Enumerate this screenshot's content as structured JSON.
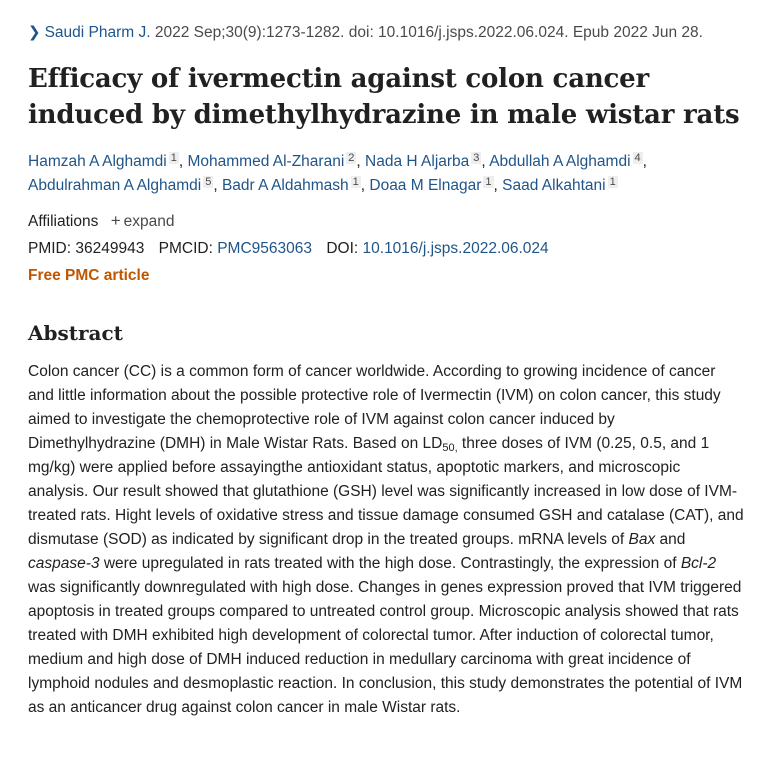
{
  "citation": {
    "journal": "Saudi Pharm J.",
    "details": "2022 Sep;30(9):1273-1282. doi: 10.1016/j.jsps.2022.06.024. Epub 2022 Jun 28."
  },
  "article": {
    "title": "Efficacy of ivermectin against colon cancer induced by dimethylhydrazine in male wistar rats"
  },
  "authors": [
    {
      "name": "Hamzah A Alghamdi",
      "aff": "1"
    },
    {
      "name": "Mohammed Al-Zharani",
      "aff": "2"
    },
    {
      "name": "Nada H Aljarba",
      "aff": "3"
    },
    {
      "name": "Abdullah A Alghamdi",
      "aff": "4"
    },
    {
      "name": "Abdulrahman A Alghamdi",
      "aff": "5"
    },
    {
      "name": "Badr A Aldahmash",
      "aff": "1"
    },
    {
      "name": "Doaa M Elnagar",
      "aff": "1"
    },
    {
      "name": "Saad Alkahtani",
      "aff": "1"
    }
  ],
  "affiliations": {
    "label": "Affiliations",
    "expand_label": "expand"
  },
  "identifiers": {
    "pmid_label": "PMID:",
    "pmid": "36249943",
    "pmcid_label": "PMCID:",
    "pmcid": "PMC9563063",
    "doi_label": "DOI:",
    "doi": "10.1016/j.jsps.2022.06.024"
  },
  "free_pmc_label": "Free PMC article",
  "abstract": {
    "heading": "Abstract",
    "p1": "Colon cancer (CC) is a common form of cancer worldwide. According to growing incidence of cancer and little information about the possible protective role of Ivermectin (IVM) on colon cancer, this study aimed to investigate the chemoprotective role of IVM against colon cancer induced by Dimethylhydrazine (DMH) in Male Wistar Rats. Based on LD",
    "ld_sub": "50,",
    "p2": " three doses of IVM (0.25, 0.5, and 1 mg/kg) were applied before assayingthe antioxidant status, apoptotic markers, and microscopic analysis. Our result showed that glutathione (GSH) level was significantly increased in low dose of IVM-treated rats. Hight levels of oxidative stress and tissue damage consumed GSH and catalase (CAT), and dismutase (SOD) as indicated by significant drop in the treated groups. mRNA levels of ",
    "gene1": "Bax",
    "and": " and ",
    "gene2": "caspase-3",
    "p3": " were upregulated in rats treated with the high dose. Contrastingly, the expression of ",
    "gene3": "Bcl-2",
    "p4": " was significantly downregulated with high dose. Changes in genes expression proved that IVM triggered apoptosis in treated groups compared to untreated control group. Microscopic analysis showed that rats treated with DMH exhibited high development of colorectal tumor. After induction of colorectal tumor, medium and high dose of DMH induced reduction in medullary carcinoma with great incidence of lymphoid nodules and desmoplastic reaction. In conclusion, this study demonstrates the potential of IVM as an anticancer drug against colon cancer in male Wistar rats."
  },
  "colors": {
    "link": "#20558a",
    "free_pmc": "#c05600",
    "text": "#212121"
  },
  "icons": {
    "journal_chevron": "chevron-right-icon",
    "expand": "plus-icon"
  }
}
